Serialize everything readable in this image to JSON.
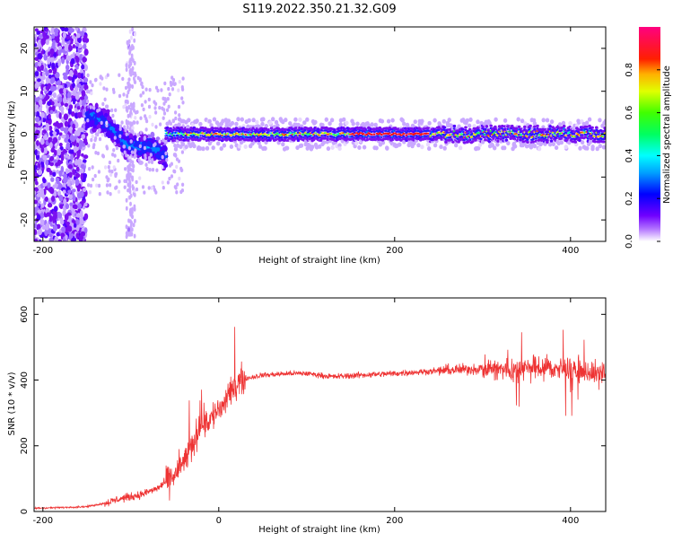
{
  "title": "S119.2022.350.21.32.G09",
  "chart_data": [
    {
      "type": "heatmap",
      "xlabel": "Height of straight line (km)",
      "ylabel": "Frequency (Hz)",
      "xlim": [
        -210,
        440
      ],
      "ylim": [
        -25,
        25
      ],
      "xticks": [
        -200,
        0,
        200,
        400
      ],
      "yticks": [
        -20,
        -10,
        0,
        10,
        20
      ],
      "colorbar": {
        "label": "Normalized spectral amplitude",
        "range": [
          0,
          1
        ],
        "ticks": [
          "0.0",
          "0.2",
          "0.4",
          "0.6",
          "0.8"
        ],
        "colormap": "white-violet-blue-cyan-green-yellow-red-magenta"
      },
      "features": [
        {
          "description": "scattered noise",
          "x_range": [
            -210,
            -150
          ],
          "freq_range": [
            -25,
            25
          ]
        },
        {
          "description": "low frequency band",
          "x_range": [
            -150,
            -60
          ],
          "freq_start": 4,
          "freq_end": -6
        },
        {
          "description": "narrow line at 0 Hz",
          "x_range": [
            -60,
            440
          ],
          "freq": 0
        }
      ]
    },
    {
      "type": "line",
      "xlabel": "Height of straight line (km)",
      "ylabel": "SNR (10 * v/v)",
      "xlim": [
        -210,
        440
      ],
      "ylim": [
        0,
        650
      ],
      "xticks": [
        -200,
        0,
        200,
        400
      ],
      "yticks": [
        0,
        200,
        400,
        600
      ],
      "line_color": "#ee3333",
      "series": [
        {
          "x": [
            -210,
            -180,
            -150,
            -130,
            -110,
            -90,
            -70,
            -50,
            -40,
            -30,
            -20,
            -10,
            0,
            10,
            20,
            30,
            50,
            80,
            100,
            130,
            160,
            200,
            230,
            260,
            300,
            330,
            360,
            400,
            440
          ],
          "values": [
            10,
            12,
            15,
            25,
            40,
            50,
            70,
            110,
            150,
            200,
            270,
            280,
            310,
            340,
            390,
            405,
            415,
            420,
            420,
            410,
            415,
            420,
            425,
            430,
            435,
            430,
            440,
            430,
            420
          ]
        }
      ]
    }
  ]
}
